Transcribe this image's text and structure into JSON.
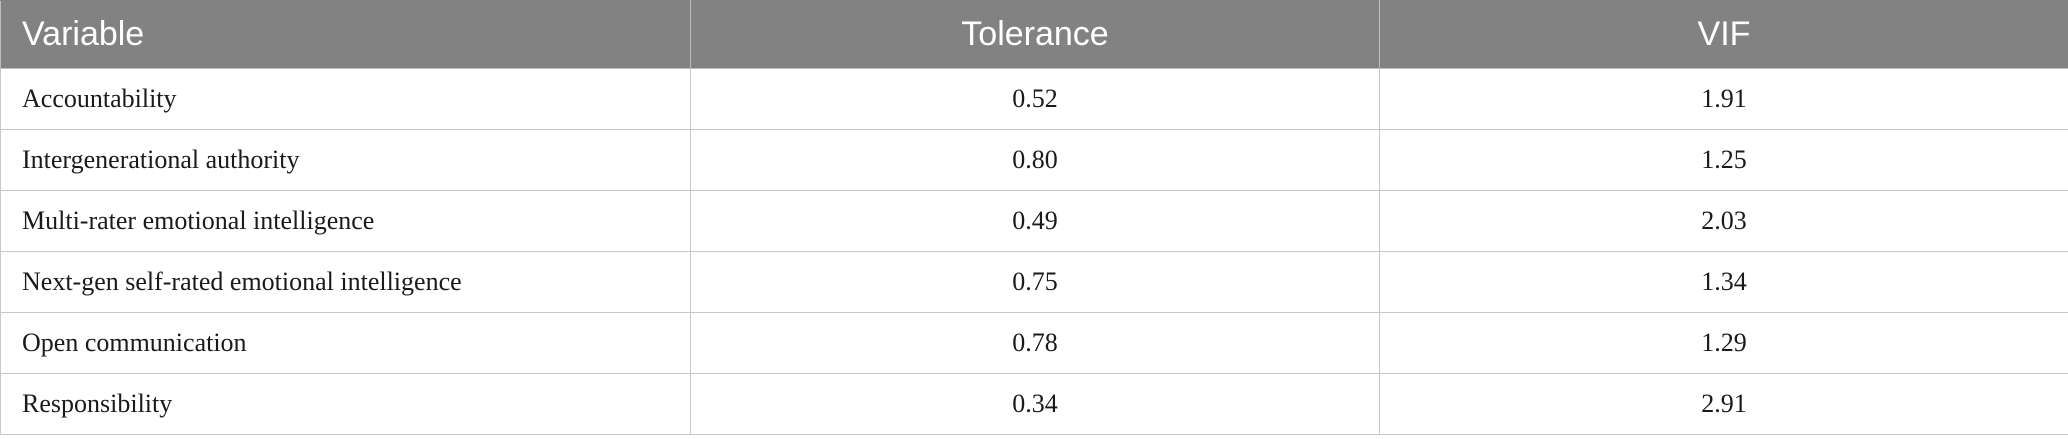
{
  "table": {
    "headers": {
      "variable": "Variable",
      "tolerance": "Tolerance",
      "vif": "VIF"
    },
    "rows": [
      {
        "variable": "Accountability",
        "tolerance": "0.52",
        "vif": "1.91"
      },
      {
        "variable": "Intergenerational authority",
        "tolerance": "0.80",
        "vif": "1.25"
      },
      {
        "variable": "Multi-rater emotional intelligence",
        "tolerance": "0.49",
        "vif": "2.03"
      },
      {
        "variable": "Next-gen self-rated emotional intelligence",
        "tolerance": "0.75",
        "vif": "1.34"
      },
      {
        "variable": "Open communication",
        "tolerance": "0.78",
        "vif": "1.29"
      },
      {
        "variable": "Responsibility",
        "tolerance": "0.34",
        "vif": "2.91"
      }
    ]
  },
  "colors": {
    "header_background": "#818281",
    "header_text": "#ffffff",
    "grid_line": "#c8c8c8"
  }
}
